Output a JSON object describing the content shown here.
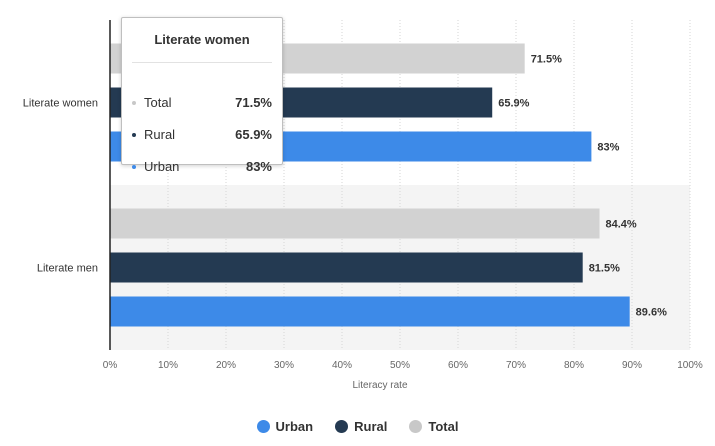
{
  "chart_data": {
    "type": "bar",
    "orientation": "horizontal",
    "categories": [
      "Literate women",
      "Literate men"
    ],
    "series": [
      {
        "name": "Total",
        "color": "#d2d2d2",
        "values": [
          71.5,
          84.4
        ],
        "labels": [
          "71.5%",
          "84.4%"
        ]
      },
      {
        "name": "Rural",
        "color": "#243a52",
        "values": [
          65.9,
          81.5
        ],
        "labels": [
          "65.9%",
          "81.5%"
        ]
      },
      {
        "name": "Urban",
        "color": "#3d8ae8",
        "values": [
          83,
          89.6
        ],
        "labels": [
          "83%",
          "89.6%"
        ]
      }
    ],
    "xlabel": "Literacy rate",
    "xlim": [
      0,
      100
    ],
    "xticks": [
      "0%",
      "10%",
      "20%",
      "30%",
      "40%",
      "50%",
      "60%",
      "70%",
      "80%",
      "90%",
      "100%"
    ],
    "grid": true,
    "legend": {
      "position": "bottom",
      "items": [
        {
          "name": "Urban",
          "color": "#3d8ae8"
        },
        {
          "name": "Rural",
          "color": "#243a52"
        },
        {
          "name": "Total",
          "color": "#c8c8c8"
        }
      ]
    }
  },
  "tooltip": {
    "title": "Literate women",
    "rows": [
      {
        "label": "Total",
        "value": "71.5%",
        "color": "#c8c8c8"
      },
      {
        "label": "Rural",
        "value": "65.9%",
        "color": "#243a52"
      },
      {
        "label": "Urban",
        "value": "83%",
        "color": "#3d8ae8"
      }
    ]
  }
}
